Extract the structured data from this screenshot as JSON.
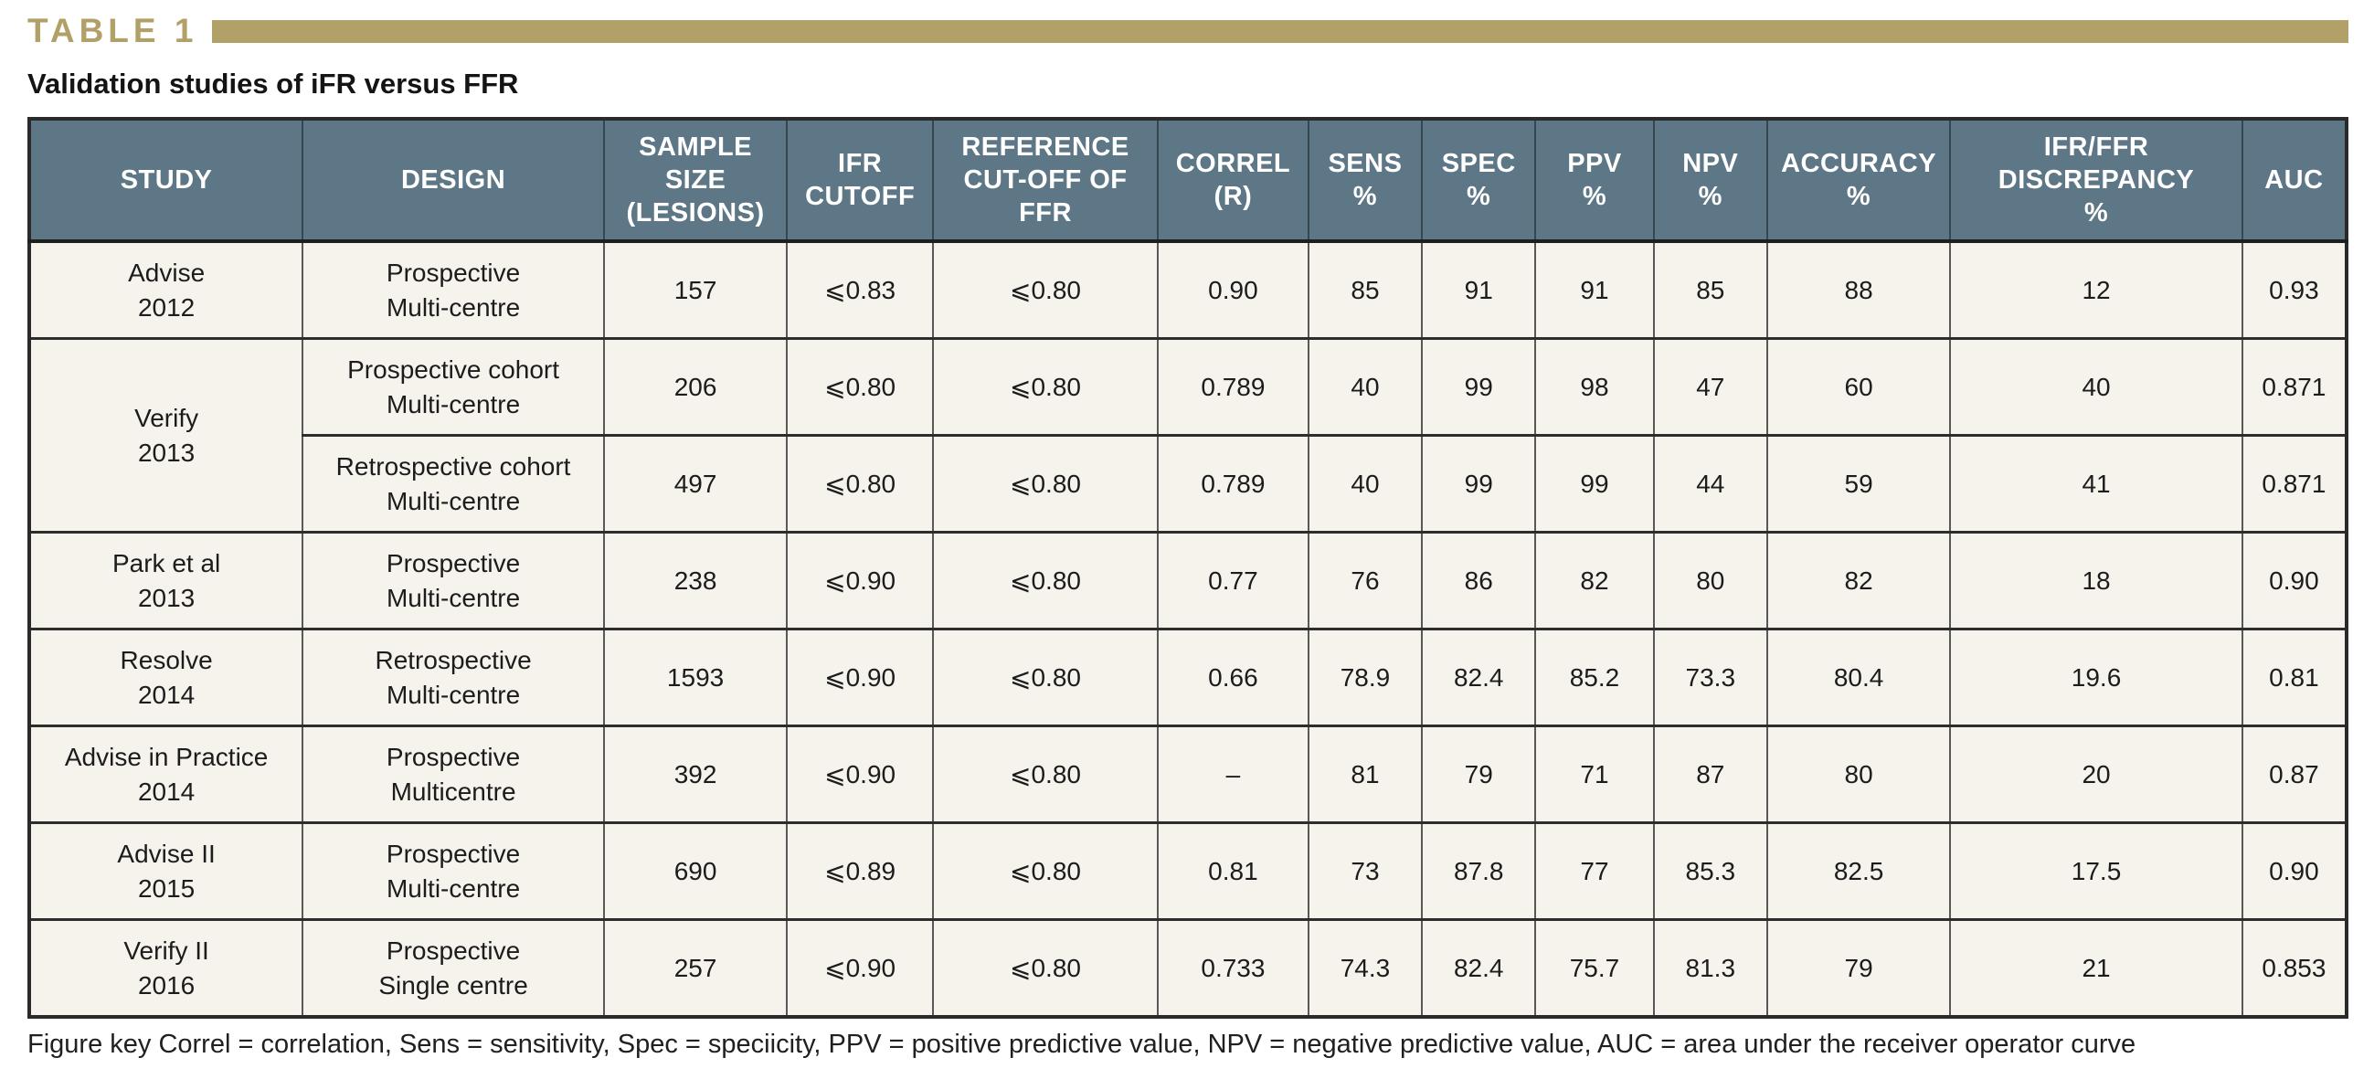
{
  "page": {
    "table_label": "TABLE 1",
    "subtitle": "Validation studies of iFR versus FFR",
    "footer": "Figure key Correl = correlation, Sens = sensitivity, Spec = speciicity, PPV = positive predictive value, NPV = negative predictive value, AUC = area under the receiver operator curve"
  },
  "colors": {
    "accent_gold": "#b1a169",
    "header_bg": "#5e7787",
    "row_bg": "#f5f3ec",
    "header_text": "#ffffff"
  },
  "chart_data": {
    "type": "table",
    "title": "Validation studies of iFR versus FFR",
    "headers": [
      "STUDY",
      "DESIGN",
      "SAMPLE SIZE (LESIONS)",
      "IFR CUTOFF",
      "REFERENCE CUT-OFF OF FFR",
      "CORREL (R)",
      "SENS %",
      "SPEC %",
      "PPV %",
      "NPV %",
      "ACCURACY %",
      "IFR/FFR DISCREPANCY %",
      "AUC"
    ]
  },
  "table": {
    "headers": [
      [
        "STUDY"
      ],
      [
        "DESIGN"
      ],
      [
        "SAMPLE",
        "SIZE",
        "(LESIONS)"
      ],
      [
        "IFR",
        "CUTOFF"
      ],
      [
        "REFERENCE",
        "CUT-OFF OF",
        "FFR"
      ],
      [
        "CORREL",
        "(R)"
      ],
      [
        "SENS",
        "%"
      ],
      [
        "SPEC",
        "%"
      ],
      [
        "PPV",
        "%"
      ],
      [
        "NPV",
        "%"
      ],
      [
        "ACCURACY",
        "%"
      ],
      [
        "IFR/FFR",
        "DISCREPANCY",
        "%"
      ],
      [
        "AUC"
      ]
    ],
    "rows": [
      {
        "study": [
          "Advise",
          "2012"
        ],
        "rowspan": 1,
        "design": [
          "Prospective",
          "Multi-centre"
        ],
        "cells": [
          "157",
          "⩽0.83",
          "⩽0.80",
          "0.90",
          "85",
          "91",
          "91",
          "85",
          "88",
          "12",
          "0.93"
        ]
      },
      {
        "study": [
          "Verify",
          "2013"
        ],
        "rowspan": 2,
        "design": [
          "Prospective cohort",
          "Multi-centre"
        ],
        "cells": [
          "206",
          "⩽0.80",
          "⩽0.80",
          "0.789",
          "40",
          "99",
          "98",
          "47",
          "60",
          "40",
          "0.871"
        ]
      },
      {
        "study": null,
        "design": [
          "Retrospective cohort",
          "Multi-centre"
        ],
        "cells": [
          "497",
          "⩽0.80",
          "⩽0.80",
          "0.789",
          "40",
          "99",
          "99",
          "44",
          "59",
          "41",
          "0.871"
        ]
      },
      {
        "study": [
          "Park et al",
          "2013"
        ],
        "rowspan": 1,
        "design": [
          "Prospective",
          "Multi-centre"
        ],
        "cells": [
          "238",
          "⩽0.90",
          "⩽0.80",
          "0.77",
          "76",
          "86",
          "82",
          "80",
          "82",
          "18",
          "0.90"
        ]
      },
      {
        "study": [
          "Resolve",
          "2014"
        ],
        "rowspan": 1,
        "design": [
          "Retrospective",
          "Multi-centre"
        ],
        "cells": [
          "1593",
          "⩽0.90",
          "⩽0.80",
          "0.66",
          "78.9",
          "82.4",
          "85.2",
          "73.3",
          "80.4",
          "19.6",
          "0.81"
        ]
      },
      {
        "study": [
          "Advise in Practice",
          "2014"
        ],
        "rowspan": 1,
        "design": [
          "Prospective",
          "Multicentre"
        ],
        "cells": [
          "392",
          "⩽0.90",
          "⩽0.80",
          "–",
          "81",
          "79",
          "71",
          "87",
          "80",
          "20",
          "0.87"
        ]
      },
      {
        "study": [
          "Advise II",
          "2015"
        ],
        "rowspan": 1,
        "design": [
          "Prospective",
          "Multi-centre"
        ],
        "cells": [
          "690",
          "⩽0.89",
          "⩽0.80",
          "0.81",
          "73",
          "87.8",
          "77",
          "85.3",
          "82.5",
          "17.5",
          "0.90"
        ]
      },
      {
        "study": [
          "Verify II",
          "2016"
        ],
        "rowspan": 1,
        "design": [
          "Prospective",
          "Single centre"
        ],
        "cells": [
          "257",
          "⩽0.90",
          "⩽0.80",
          "0.733",
          "74.3",
          "82.4",
          "75.7",
          "81.3",
          "79",
          "21",
          "0.853"
        ]
      }
    ]
  }
}
